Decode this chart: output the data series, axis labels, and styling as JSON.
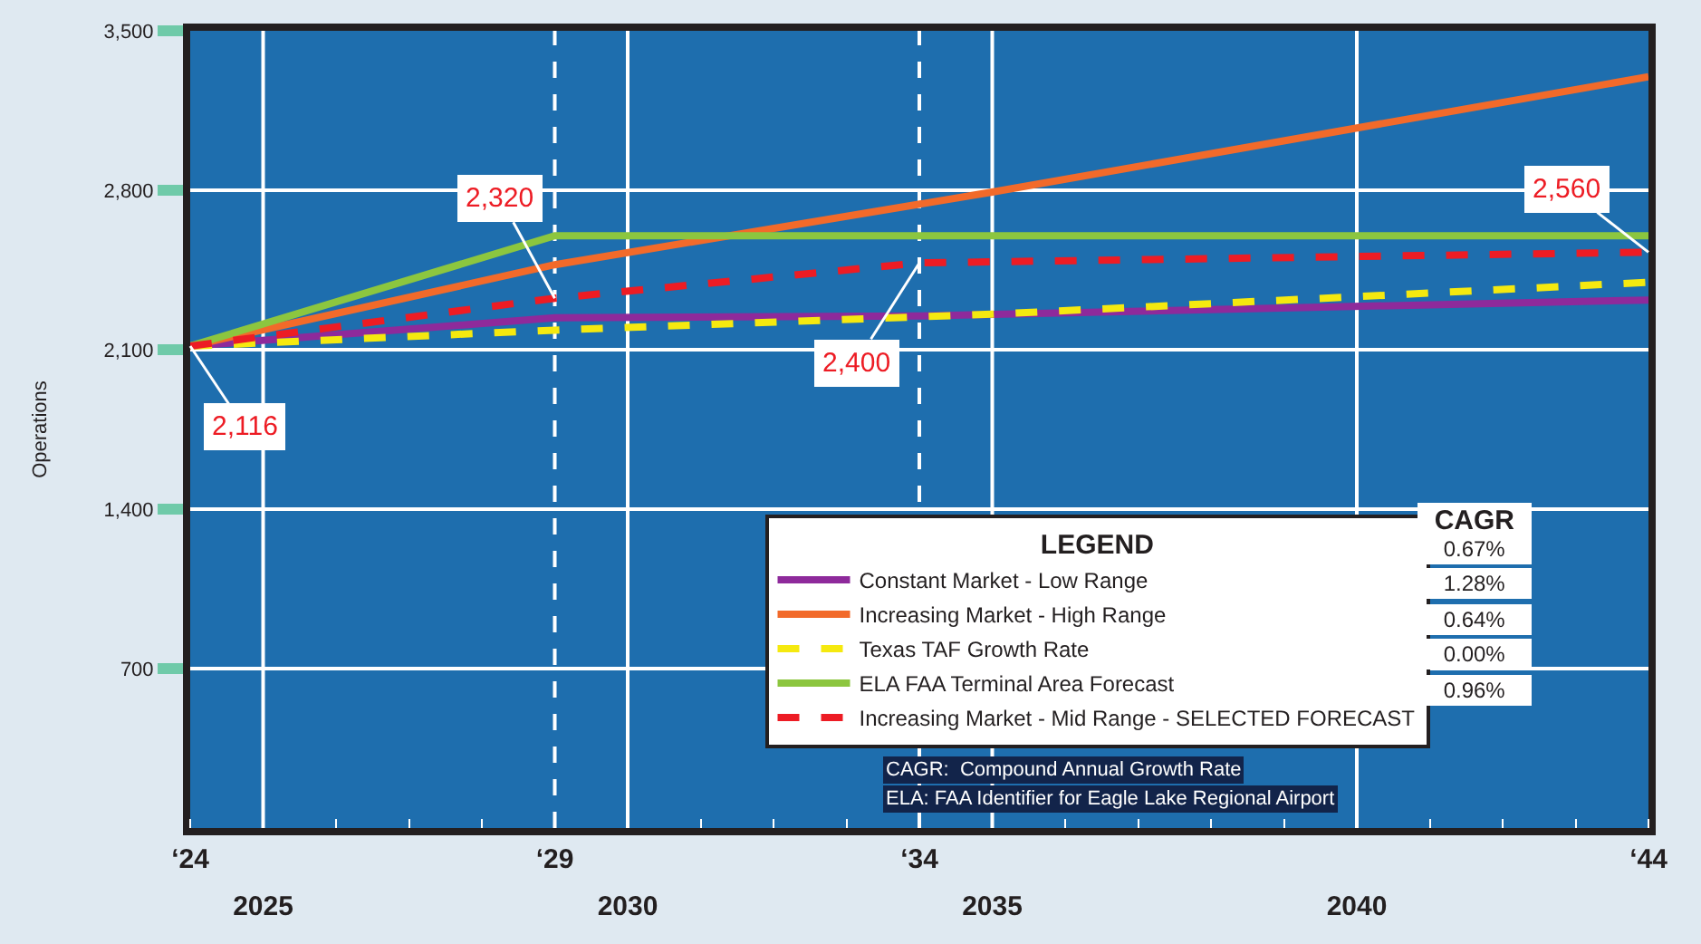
{
  "chart_data": {
    "type": "line",
    "ylabel": "Operations",
    "legend_title": "LEGEND",
    "x": [
      2024,
      2029,
      2034,
      2035,
      2040,
      2044
    ],
    "series": [
      {
        "name": "Constant Market - Low Range",
        "color": "#8e2a9b",
        "values": [
          2116,
          2240,
          2248,
          null,
          null,
          2318
        ]
      },
      {
        "name": "Increasing Market - High Range",
        "color": "#f26a2a",
        "values": [
          2116,
          2473,
          null,
          2792,
          null,
          3298
        ]
      },
      {
        "name": "Texas TAF Growth Rate",
        "color": "#f5e90f",
        "line_style": "dashed",
        "values": [
          2116,
          2186,
          null,
          2256,
          2333,
          2396
        ]
      },
      {
        "name": "ELA FAA Terminal Area Forecast",
        "color": "#8cc63f",
        "values": [
          2116,
          2600,
          null,
          null,
          null,
          2600
        ]
      },
      {
        "name": "Increasing Market - Mid Range - SELECTED FORECAST",
        "color": "#ed1c24",
        "line_style": "dashed",
        "values": [
          2116,
          2326,
          2481,
          null,
          null,
          2528
        ]
      }
    ],
    "xlim": [
      2024,
      2044
    ],
    "xticks": [
      2025,
      2030,
      2035,
      2040
    ],
    "x2lim": [
      24,
      44
    ],
    "x2ticks": [
      {
        "value": 24,
        "label": "‘24"
      },
      {
        "value": 29,
        "label": "‘29"
      },
      {
        "value": 34,
        "label": "‘34"
      },
      {
        "value": 44,
        "label": "‘44"
      }
    ],
    "ylim": [
      0,
      3500
    ],
    "yticks": [
      {
        "value": 700,
        "label": "700"
      },
      {
        "value": 1400,
        "label": "1,400"
      },
      {
        "value": 2100,
        "label": "2,100"
      },
      {
        "value": 2800,
        "label": "2,800"
      },
      {
        "value": 3500,
        "label": "3,500"
      }
    ],
    "grid": "y",
    "legend": "bottom right",
    "marker": "none",
    "line_style": "solid",
    "ref_lines": [
      {
        "axis": "x",
        "value": 2025,
        "color": "#ffffff"
      },
      {
        "axis": "x",
        "value": 2029,
        "color": "#ffffff",
        "line_style": "dashed"
      },
      {
        "axis": "x",
        "value": 2030,
        "color": "#ffffff"
      },
      {
        "axis": "x",
        "value": 2034,
        "color": "#ffffff",
        "line_style": "dashed"
      },
      {
        "axis": "x",
        "value": 2035,
        "color": "#ffffff"
      },
      {
        "axis": "x",
        "value": 2040,
        "color": "#ffffff"
      }
    ],
    "annotations": [
      {
        "text": "2,116",
        "x": 2024,
        "y": 2116
      },
      {
        "text": "2,320",
        "x": 2029,
        "y": 2326
      },
      {
        "text": "2,400",
        "x": 2034,
        "y": 2481
      },
      {
        "text": "2,560",
        "x": 2044,
        "y": 2528
      },
      "CAGR",
      "0.67%",
      "1.28%",
      "0.64%",
      "0.00%",
      "0.96%",
      "CAGR:  Compound Annual Growth Rate",
      "ELA: FAA Identifier for Eagle Lake Regional Airport"
    ]
  }
}
